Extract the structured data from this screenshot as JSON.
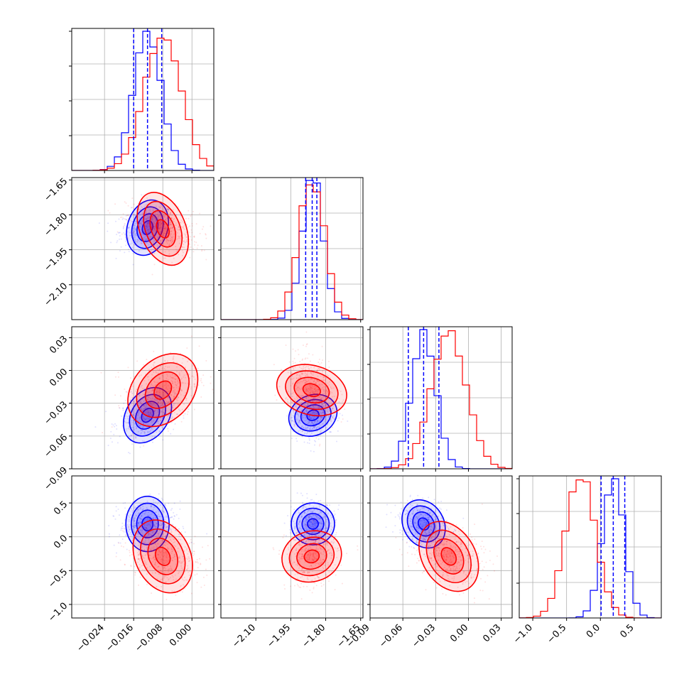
{
  "chart_data": {
    "type": "corner",
    "title": "",
    "grid": true,
    "n_params": 4,
    "param_labels": [
      "",
      "",
      "",
      ""
    ],
    "ranges": [
      [
        -0.033,
        0.006
      ],
      [
        -2.25,
        -1.64
      ],
      [
        -0.09,
        0.04
      ],
      [
        -1.2,
        0.9
      ]
    ],
    "ticks": [
      [
        -0.024,
        -0.016,
        -0.008,
        0.0
      ],
      [
        -2.1,
        -1.95,
        -1.8,
        -1.65
      ],
      [
        -0.09,
        -0.06,
        -0.03,
        0.0,
        0.03
      ],
      [
        -1.0,
        -0.5,
        0.0,
        0.5
      ]
    ],
    "tick_labels": [
      [
        "−0.024",
        "−0.016",
        "−0.008",
        "0.000"
      ],
      [
        "−2.10",
        "−1.95",
        "−1.80",
        "−1.65"
      ],
      [
        "−0.09",
        "−0.06",
        "−0.03",
        "0.00",
        "0.03"
      ],
      [
        "−1.0",
        "−0.5",
        "0.0",
        "0.5"
      ]
    ],
    "series": [
      {
        "color": "#0000ff",
        "mean": [
          -0.0122,
          -1.855,
          -0.041,
          0.19
        ],
        "std": [
          0.0038,
          0.045,
          0.011,
          0.16
        ],
        "corr": [
          [
            1,
            0.2,
            0.3,
            0
          ],
          [
            0.2,
            1,
            0.15,
            0
          ],
          [
            0.3,
            0.15,
            1,
            -0.2
          ],
          [
            0,
            0,
            -0.2,
            1
          ]
        ],
        "quantiles": [
          [
            -0.016,
            -0.0122,
            -0.0083
          ],
          [
            -1.886,
            -1.858,
            -1.838
          ],
          [
            -0.055,
            -0.041,
            -0.027
          ],
          [
            0.01,
            0.19,
            0.36
          ]
        ]
      },
      {
        "color": "#ff0000",
        "mean": [
          -0.008,
          -1.86,
          -0.018,
          -0.29
        ],
        "std": [
          0.005,
          0.055,
          0.016,
          0.22
        ],
        "corr": [
          [
            1,
            -0.35,
            0.3,
            -0.25
          ],
          [
            -0.35,
            1,
            -0.2,
            0.1
          ],
          [
            0.3,
            -0.2,
            1,
            -0.3
          ],
          [
            -0.25,
            0.1,
            -0.3,
            1
          ]
        ]
      }
    ]
  }
}
